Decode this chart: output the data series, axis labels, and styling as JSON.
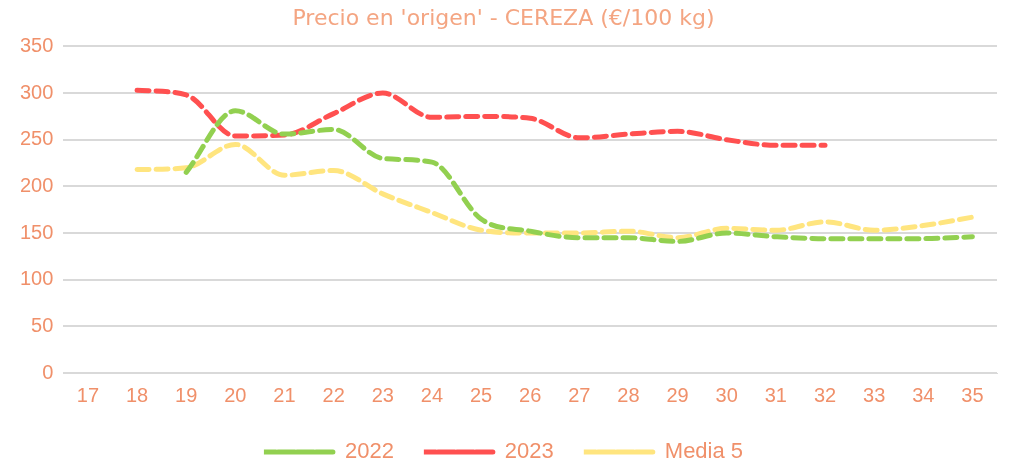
{
  "chart_data": {
    "type": "line",
    "title": "Precio en 'origen' - CEREZA (€/100 kg)",
    "categories": [
      "17",
      "18",
      "19",
      "20",
      "21",
      "22",
      "23",
      "24",
      "25",
      "26",
      "27",
      "28",
      "29",
      "30",
      "31",
      "32",
      "33",
      "34",
      "35"
    ],
    "series": [
      {
        "name": "2022",
        "color": "#92d050",
        "values": [
          null,
          null,
          215,
          281,
          256,
          261,
          230,
          226,
          165,
          152,
          145,
          145,
          141,
          150,
          146,
          144,
          144,
          144,
          146
        ]
      },
      {
        "name": "2023",
        "color": "#ff5050",
        "values": [
          null,
          303,
          298,
          254,
          255,
          278,
          300,
          274,
          275,
          273,
          252,
          256,
          259,
          250,
          244,
          244,
          null,
          null,
          null
        ]
      },
      {
        "name": "Media 5",
        "color": "#ffe57f",
        "values": [
          null,
          218,
          220,
          245,
          212,
          217,
          192,
          172,
          153,
          150,
          150,
          152,
          145,
          155,
          153,
          162,
          153,
          158,
          167
        ]
      }
    ],
    "ylim": [
      0,
      350
    ],
    "yticks": [
      0,
      50,
      100,
      150,
      200,
      250,
      300,
      350
    ],
    "grid": "y",
    "legend": "bottom",
    "marker": "none",
    "line_style": "dashed"
  }
}
